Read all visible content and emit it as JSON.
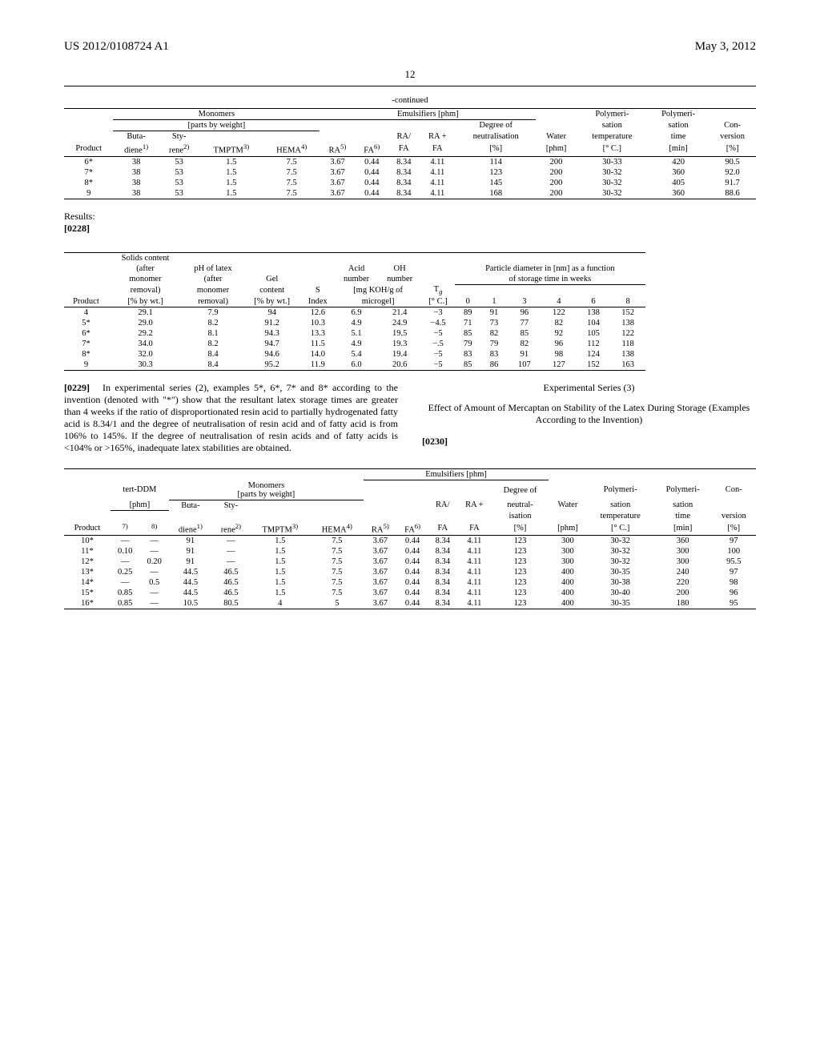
{
  "header": {
    "doc_number": "US 2012/0108724 A1",
    "doc_date": "May 3, 2012",
    "page": "12"
  },
  "table1": {
    "caption": "-continued",
    "group_monomers": "Monomers",
    "group_monomers_sub": "[parts by weight]",
    "group_emuls": "Emulsifiers [phm]",
    "group_degree": "Degree of",
    "hdr": {
      "product": "Product",
      "buta": "Buta-",
      "buta2": "diene",
      "buta_sup": "1)",
      "sty": "Sty-",
      "sty2": "rene",
      "sty_sup": "2)",
      "tmptm": "TMPTM",
      "tmptm_sup": "3)",
      "hema": "HEMA",
      "hema_sup": "4)",
      "ra": "RA",
      "ra_sup": "5)",
      "fa": "FA",
      "fa_sup": "6)",
      "rafa1": "RA/",
      "rafa2": "FA",
      "rapfa1": "RA +",
      "rapfa2": "FA",
      "neutral1": "neutralisation",
      "neutral2": "[%]",
      "water1": "Water",
      "water2": "[phm]",
      "polys1": "Polymeri-",
      "polys2": "sation",
      "temp1": "temperature",
      "temp2": "[° C.]",
      "time1": "time",
      "time2": "[min]",
      "conv1": "Con-",
      "conv2": "version",
      "conv3": "[%]"
    },
    "rows": [
      {
        "p": "6*",
        "bd": "38",
        "st": "53",
        "tm": "1.5",
        "he": "7.5",
        "ra": "3.67",
        "fa": "0.44",
        "rafa": "8.34",
        "rapfa": "4.11",
        "neu": "114",
        "wat": "200",
        "temp": "30-33",
        "time": "420",
        "conv": "90.5"
      },
      {
        "p": "7*",
        "bd": "38",
        "st": "53",
        "tm": "1.5",
        "he": "7.5",
        "ra": "3.67",
        "fa": "0.44",
        "rafa": "8.34",
        "rapfa": "4.11",
        "neu": "123",
        "wat": "200",
        "temp": "30-32",
        "time": "360",
        "conv": "92.0"
      },
      {
        "p": "8*",
        "bd": "38",
        "st": "53",
        "tm": "1.5",
        "he": "7.5",
        "ra": "3.67",
        "fa": "0.44",
        "rafa": "8.34",
        "rapfa": "4.11",
        "neu": "145",
        "wat": "200",
        "temp": "30-32",
        "time": "405",
        "conv": "91.7"
      },
      {
        "p": "9",
        "bd": "38",
        "st": "53",
        "tm": "1.5",
        "he": "7.5",
        "ra": "3.67",
        "fa": "0.44",
        "rafa": "8.34",
        "rapfa": "4.11",
        "neu": "168",
        "wat": "200",
        "temp": "30-32",
        "time": "360",
        "conv": "88.6"
      }
    ]
  },
  "results_label": "Results:",
  "results_num": "[0228]",
  "table2": {
    "hdr": {
      "product": "Product",
      "solids1": "Solids content",
      "solids2": "(after",
      "solids3": "monomer",
      "solids4": "removal)",
      "solids_unit": "[% by wt.]",
      "ph1": "pH of latex",
      "ph2": "(after",
      "ph3": "monomer",
      "ph4": "removal)",
      "gel1": "Gel",
      "gel2": "content",
      "gel_unit": "[% by wt.]",
      "s1": "S",
      "s2": "Index",
      "acid1": "Acid",
      "acid2": "number",
      "oh1": "OH",
      "oh2": "number",
      "mg_unit1": "[mg KOH/g of",
      "mg_unit2": "microgel]",
      "tg": "T",
      "tg_sub": "g",
      "tg_unit": "[° C.]",
      "pd1": "Particle diameter in [nm] as a function",
      "pd2": "of storage time in weeks",
      "w0": "0",
      "w1": "1",
      "w3": "3",
      "w4": "4",
      "w6": "6",
      "w8": "8"
    },
    "rows": [
      {
        "p": "4",
        "sc": "29.1",
        "ph": "7.9",
        "gel": "94",
        "s": "12.6",
        "an": "6.9",
        "ohn": "21.4",
        "tg": "−3",
        "w0": "89",
        "w1": "91",
        "w3": "96",
        "w4": "122",
        "w6": "138",
        "w8": "152"
      },
      {
        "p": "5*",
        "sc": "29.0",
        "ph": "8.2",
        "gel": "91.2",
        "s": "10.3",
        "an": "4.9",
        "ohn": "24.9",
        "tg": "−4.5",
        "w0": "71",
        "w1": "73",
        "w3": "77",
        "w4": "82",
        "w6": "104",
        "w8": "138"
      },
      {
        "p": "6*",
        "sc": "29.2",
        "ph": "8.1",
        "gel": "94.3",
        "s": "13.3",
        "an": "5.1",
        "ohn": "19.5",
        "tg": "−5",
        "w0": "85",
        "w1": "82",
        "w3": "85",
        "w4": "92",
        "w6": "105",
        "w8": "122"
      },
      {
        "p": "7*",
        "sc": "34.0",
        "ph": "8.2",
        "gel": "94.7",
        "s": "11.5",
        "an": "4.9",
        "ohn": "19.3",
        "tg": "−.5",
        "w0": "79",
        "w1": "79",
        "w3": "82",
        "w4": "96",
        "w6": "112",
        "w8": "118"
      },
      {
        "p": "8*",
        "sc": "32.0",
        "ph": "8.4",
        "gel": "94.6",
        "s": "14.0",
        "an": "5.4",
        "ohn": "19.4",
        "tg": "−5",
        "w0": "83",
        "w1": "83",
        "w3": "91",
        "w4": "98",
        "w6": "124",
        "w8": "138"
      },
      {
        "p": "9",
        "sc": "30.3",
        "ph": "8.4",
        "gel": "95.2",
        "s": "11.9",
        "an": "6.0",
        "ohn": "20.6",
        "tg": "−5",
        "w0": "85",
        "w1": "86",
        "w3": "107",
        "w4": "127",
        "w6": "152",
        "w8": "163"
      }
    ]
  },
  "col_left": {
    "num": "[0229]",
    "text": "In experimental series (2), examples 5*, 6*, 7* and 8* according to the invention (denoted with \"*\") show that the resultant latex storage times are greater than 4 weeks if the ratio of disproportionated resin acid to partially hydrogenated fatty acid is 8.34/1 and the degree of neutralisation of resin acid and of fatty acid is from 106% to 145%. If the degree of neutralisation of resin acids and of fatty acids is <104% or >165%, inadequate latex stabilities are obtained."
  },
  "col_right": {
    "title": "Experimental Series (3)",
    "subtitle": "Effect of Amount of Mercaptan on Stability of the Latex During Storage (Examples According to the Invention)",
    "num": "[0230]"
  },
  "table3": {
    "group_tddm": "tert-DDM",
    "tddm_unit": "[phm]",
    "group_monomers": "Monomers",
    "group_monomers_sub": "[parts by weight]",
    "group_emuls": "Emulsifiers [phm]",
    "group_degree": "Degree of",
    "hdr": {
      "product": "Product",
      "c7": "7)",
      "c8": "8)",
      "buta": "Buta-",
      "buta2": "diene",
      "buta_sup": "1)",
      "sty": "Sty-",
      "sty2": "rene",
      "sty_sup": "2)",
      "tmptm": "TMPTM",
      "tmptm_sup": "3)",
      "hema": "HEMA",
      "hema_sup": "4)",
      "ra": "RA",
      "ra_sup": "5)",
      "fa": "FA",
      "fa_sup": "6)",
      "rafa1": "RA/",
      "rafa2": "FA",
      "rapfa1": "RA +",
      "rapfa2": "FA",
      "neutral1": "neutral-",
      "neutral2": "isation",
      "neutral3": "[%]",
      "water1": "Water",
      "water2": "[phm]",
      "polys1": "Polymeri-",
      "polys2": "sation",
      "temp1": "temperature",
      "temp2": "[° C.]",
      "time1": "time",
      "time2": "[min]",
      "conv1": "Con-",
      "conv2": "version",
      "conv3": "[%]"
    },
    "rows": [
      {
        "p": "10*",
        "c7": "—",
        "c8": "—",
        "bd": "91",
        "st": "—",
        "tm": "1.5",
        "he": "7.5",
        "ra": "3.67",
        "fa": "0.44",
        "rafa": "8.34",
        "rapfa": "4.11",
        "neu": "123",
        "wat": "300",
        "temp": "30-32",
        "time": "360",
        "conv": "97"
      },
      {
        "p": "11*",
        "c7": "0.10",
        "c8": "—",
        "bd": "91",
        "st": "—",
        "tm": "1.5",
        "he": "7.5",
        "ra": "3.67",
        "fa": "0.44",
        "rafa": "8.34",
        "rapfa": "4.11",
        "neu": "123",
        "wat": "300",
        "temp": "30-32",
        "time": "300",
        "conv": "100"
      },
      {
        "p": "12*",
        "c7": "—",
        "c8": "0.20",
        "bd": "91",
        "st": "—",
        "tm": "1.5",
        "he": "7.5",
        "ra": "3.67",
        "fa": "0.44",
        "rafa": "8.34",
        "rapfa": "4.11",
        "neu": "123",
        "wat": "300",
        "temp": "30-32",
        "time": "300",
        "conv": "95.5"
      },
      {
        "p": "13*",
        "c7": "0.25",
        "c8": "—",
        "bd": "44.5",
        "st": "46.5",
        "tm": "1.5",
        "he": "7.5",
        "ra": "3.67",
        "fa": "0.44",
        "rafa": "8.34",
        "rapfa": "4.11",
        "neu": "123",
        "wat": "400",
        "temp": "30-35",
        "time": "240",
        "conv": "97"
      },
      {
        "p": "14*",
        "c7": "—",
        "c8": "0.5",
        "bd": "44.5",
        "st": "46.5",
        "tm": "1.5",
        "he": "7.5",
        "ra": "3.67",
        "fa": "0.44",
        "rafa": "8.34",
        "rapfa": "4.11",
        "neu": "123",
        "wat": "400",
        "temp": "30-38",
        "time": "220",
        "conv": "98"
      },
      {
        "p": "15*",
        "c7": "0.85",
        "c8": "—",
        "bd": "44.5",
        "st": "46.5",
        "tm": "1.5",
        "he": "7.5",
        "ra": "3.67",
        "fa": "0.44",
        "rafa": "8.34",
        "rapfa": "4.11",
        "neu": "123",
        "wat": "400",
        "temp": "30-40",
        "time": "200",
        "conv": "96"
      },
      {
        "p": "16*",
        "c7": "0.85",
        "c8": "—",
        "bd": "10.5",
        "st": "80.5",
        "tm": "4",
        "he": "5",
        "ra": "3.67",
        "fa": "0.44",
        "rafa": "8.34",
        "rapfa": "4.11",
        "neu": "123",
        "wat": "400",
        "temp": "30-35",
        "time": "180",
        "conv": "95"
      }
    ]
  }
}
